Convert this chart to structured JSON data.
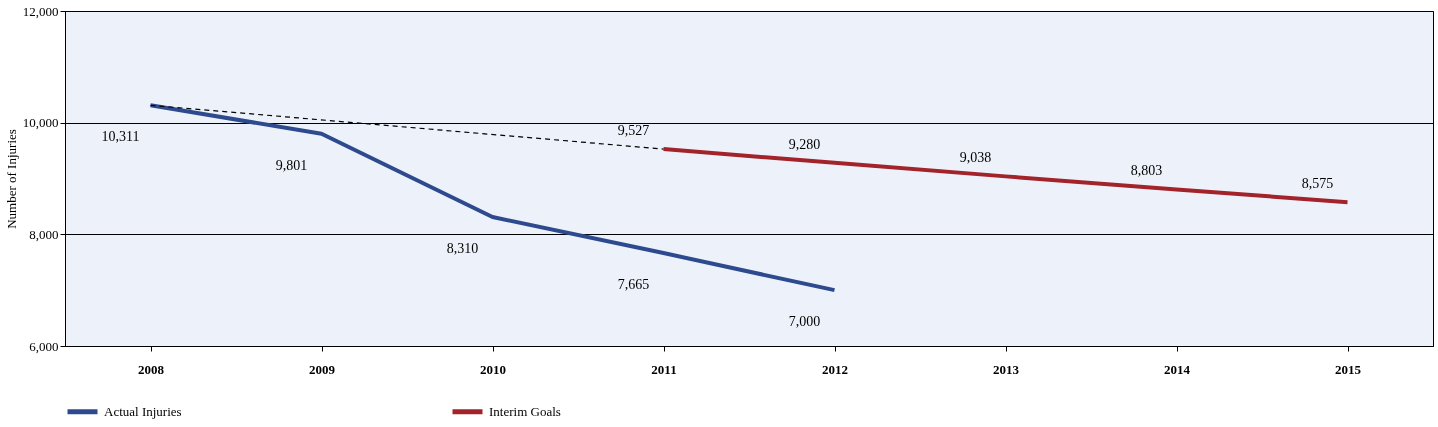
{
  "chart_data": {
    "type": "line",
    "ylabel": "Number of Injuries",
    "x": [
      2008,
      2009,
      2010,
      2011,
      2012,
      2013,
      2014,
      2015
    ],
    "series": [
      {
        "name": "Actual Injuries",
        "color": "#2e4a8f",
        "values": [
          10311,
          9801,
          8310,
          7665,
          7000,
          null,
          null,
          null
        ],
        "value_labels": [
          "10,311",
          "9,801",
          "8,310",
          "7,665",
          "7,000",
          null,
          null,
          null
        ]
      },
      {
        "name": "Interim Goals",
        "color": "#a3232b",
        "values": [
          null,
          null,
          null,
          9527,
          9280,
          9038,
          8803,
          8575
        ],
        "value_labels": [
          null,
          null,
          null,
          "9,527",
          "9,280",
          "9,038",
          "8,803",
          "8,575"
        ]
      },
      {
        "color": "#000000",
        "x": [
          2008,
          2011
        ],
        "values": [
          10311,
          9527
        ],
        "line_style": "dashed"
      }
    ],
    "xlim": [
      2007.5,
      2015.5
    ],
    "xticks": [
      2008,
      2009,
      2010,
      2011,
      2012,
      2013,
      2014,
      2015
    ],
    "ylim": [
      6000,
      12000
    ],
    "yticks": [
      {
        "value": 6000,
        "label": "6,000"
      },
      {
        "value": 8000,
        "label": "8,000"
      },
      {
        "value": 10000,
        "label": "10,000"
      },
      {
        "value": 12000,
        "label": "12,000"
      }
    ],
    "grid": "y",
    "legend": "bottom"
  }
}
